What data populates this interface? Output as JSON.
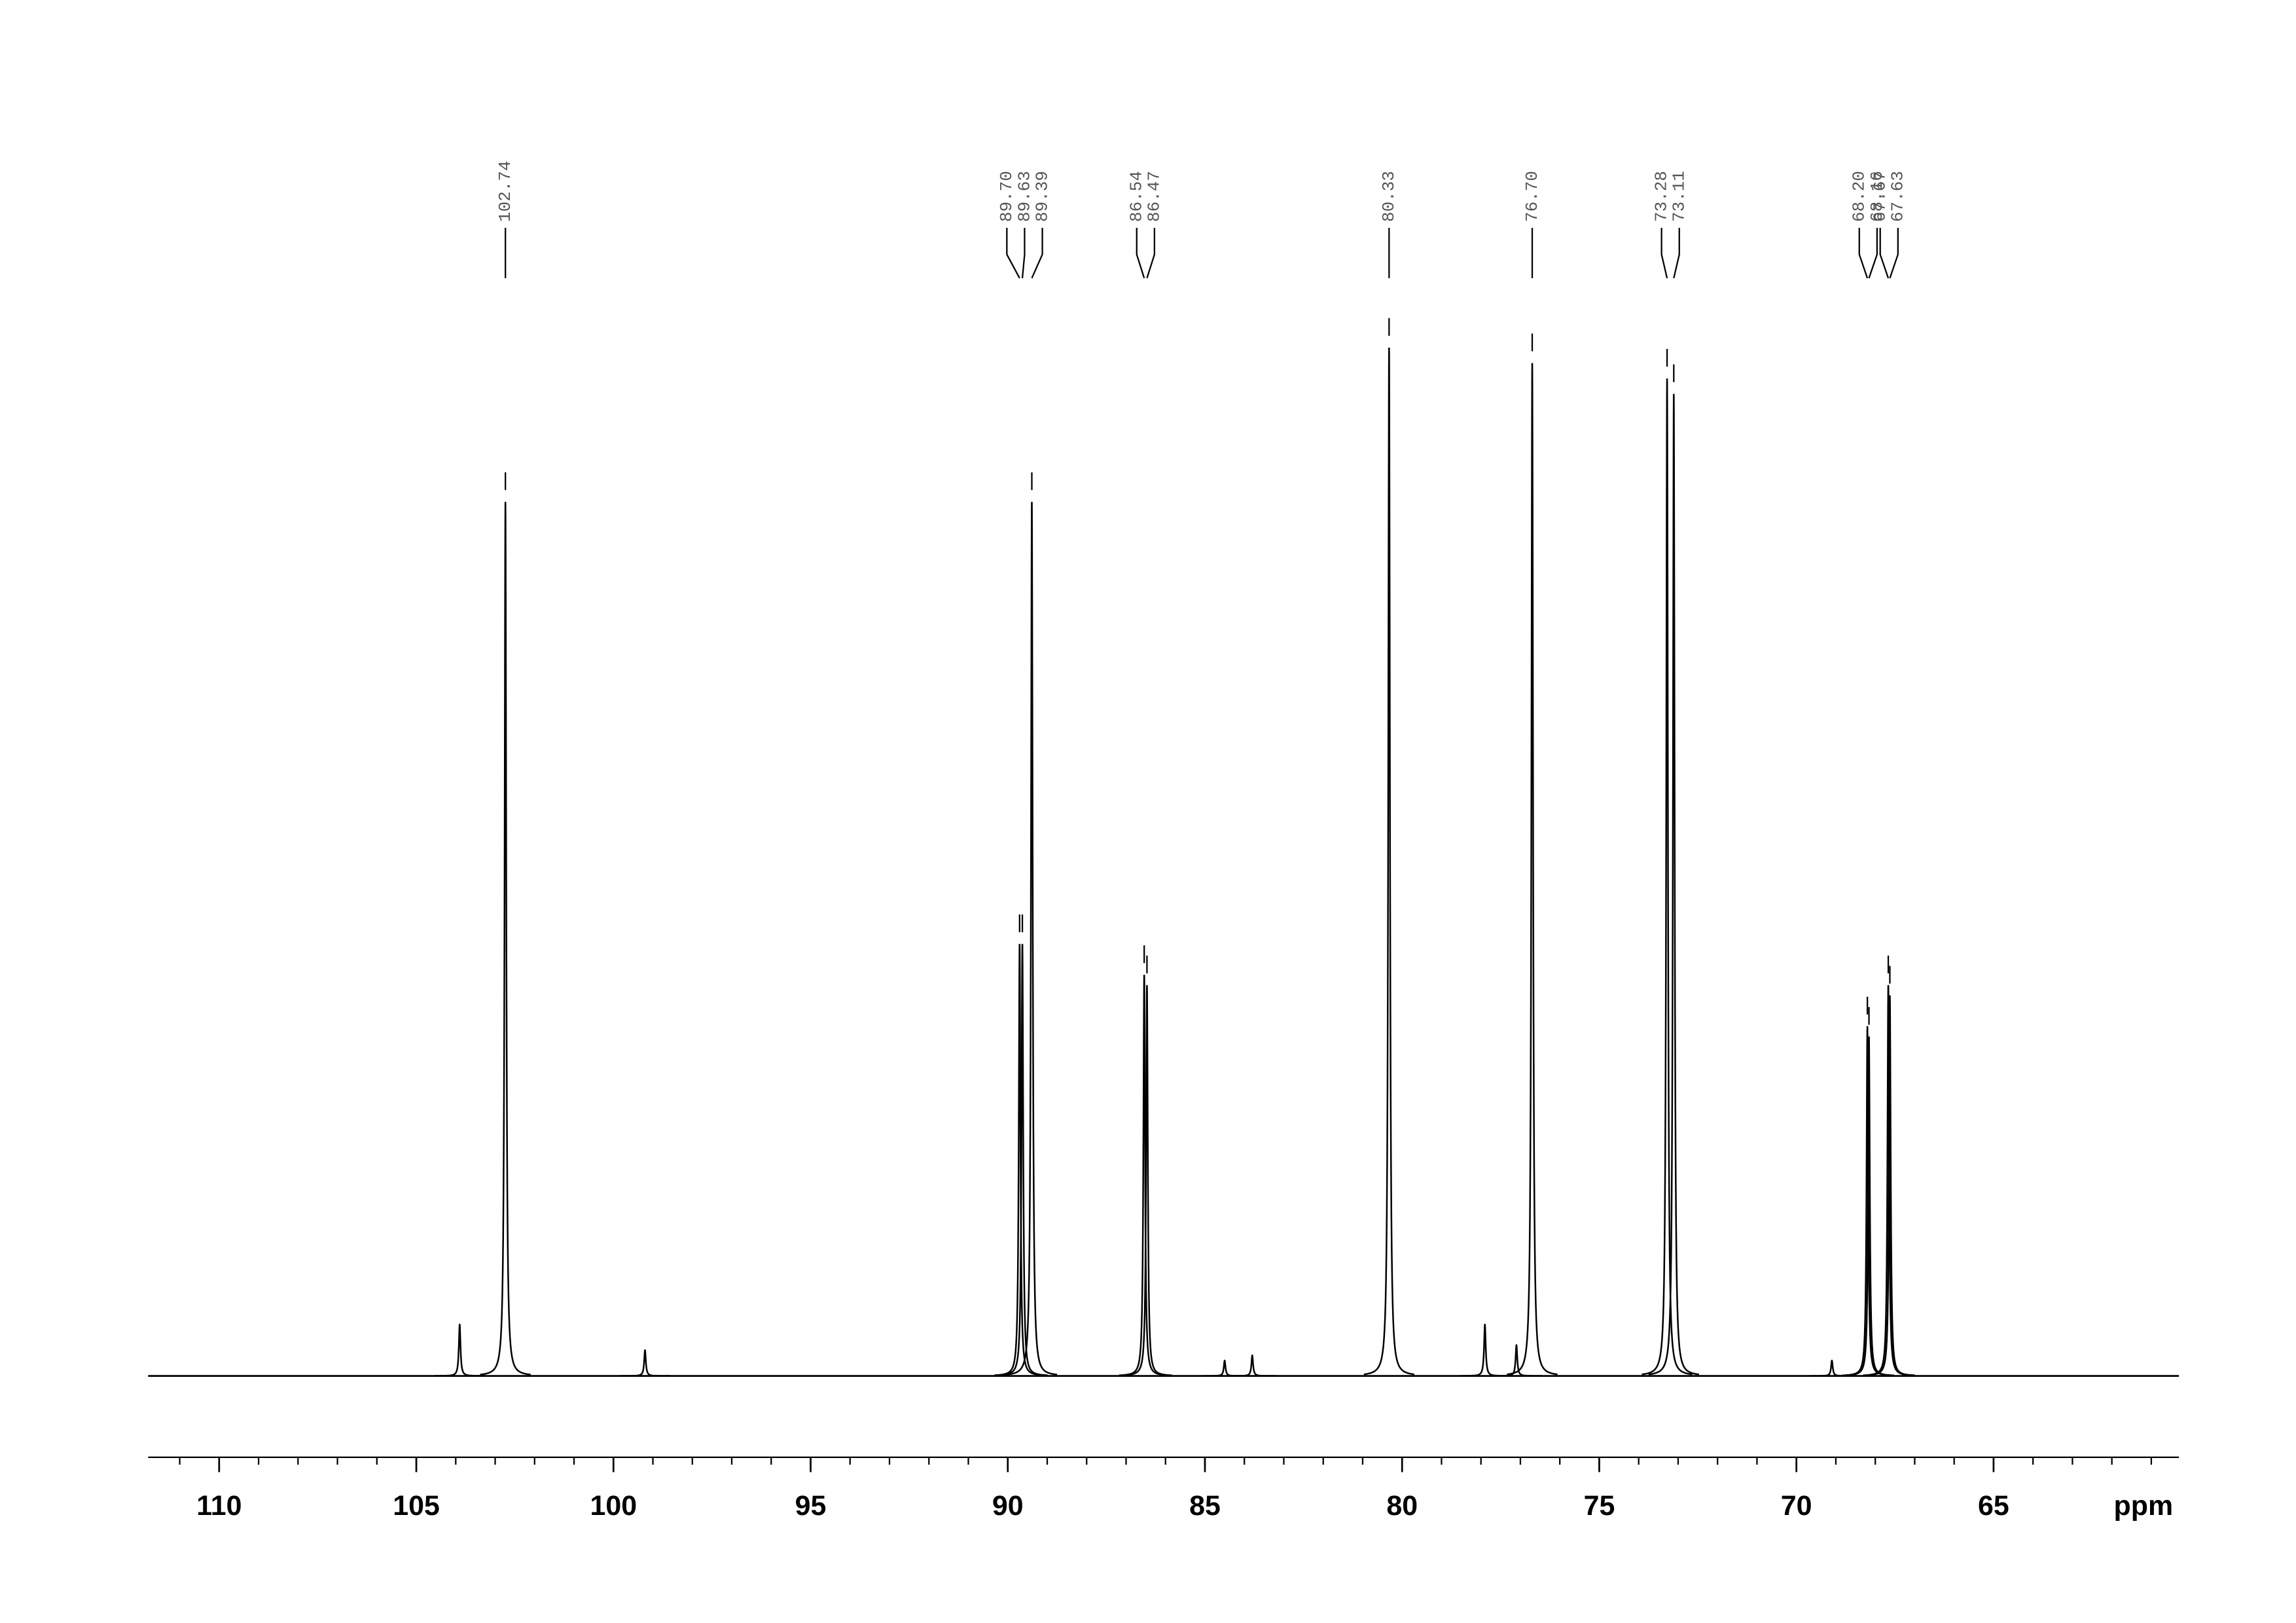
{
  "chart_data": {
    "type": "nmr",
    "x_label": "ppm",
    "xlim": [
      111.8,
      60.3
    ],
    "xticks": [
      110,
      105,
      100,
      95,
      90,
      85,
      80,
      75,
      70,
      65
    ],
    "ylim": [
      0,
      100
    ],
    "color": "#000000",
    "series": [
      {
        "name": "spectrum",
        "x": [
          103.9,
          102.74,
          99.2,
          89.7,
          89.63,
          89.39,
          86.54,
          86.47,
          84.5,
          83.8,
          80.33,
          77.9,
          77.1,
          76.7,
          73.28,
          73.11,
          69.1,
          68.2,
          68.16,
          67.67,
          67.63
        ],
        "values": [
          5,
          85,
          2.5,
          42,
          42,
          85,
          39,
          38,
          1.5,
          2,
          100,
          5,
          3,
          98.5,
          97,
          95.5,
          1.5,
          34,
          33,
          38,
          37
        ]
      }
    ],
    "peak_labels": [
      {
        "value": 102.74,
        "label": "102.74"
      },
      {
        "value": 89.7,
        "label": "89.70"
      },
      {
        "value": 89.63,
        "label": "89.63"
      },
      {
        "value": 89.39,
        "label": "89.39"
      },
      {
        "value": 86.54,
        "label": "86.54"
      },
      {
        "value": 86.47,
        "label": "86.47"
      },
      {
        "value": 80.33,
        "label": "80.33"
      },
      {
        "value": 76.7,
        "label": "76.70"
      },
      {
        "value": 73.28,
        "label": "73.28"
      },
      {
        "value": 73.11,
        "label": "73.11"
      },
      {
        "value": 68.2,
        "label": "68.20"
      },
      {
        "value": 68.16,
        "label": "68.16"
      },
      {
        "value": 67.67,
        "label": "67.67"
      },
      {
        "value": 67.63,
        "label": "67.63"
      }
    ]
  }
}
